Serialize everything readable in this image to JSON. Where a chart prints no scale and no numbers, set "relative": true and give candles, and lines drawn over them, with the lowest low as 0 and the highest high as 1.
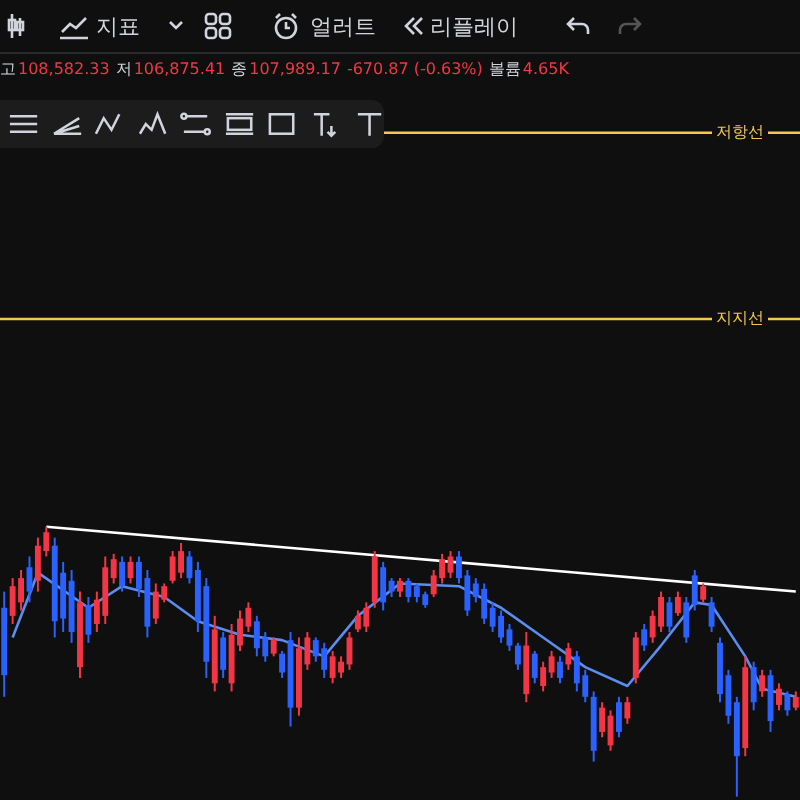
{
  "chart_data": {
    "type": "candlestick",
    "relative": true,
    "tick_labels": false,
    "colors": [
      "#2962ff",
      "#f23645",
      "#f23645",
      "#2962ff",
      "#f23645",
      "#f23645",
      "#2962ff",
      "#2962ff",
      "#2962ff",
      "#f23645",
      "#2962ff",
      "#f23645",
      "#f23645",
      "#f23645",
      "#2962ff",
      "#f23645",
      "#2962ff",
      "#2962ff",
      "#f23645",
      "#f23645",
      "#f23645",
      "#f23645",
      "#2962ff",
      "#2962ff",
      "#2962ff",
      "#f23645",
      "#2962ff",
      "#f23645",
      "#f23645",
      "#f23645",
      "#2962ff",
      "#2962ff",
      "#f23645",
      "#2962ff",
      "#2962ff",
      "#f23645",
      "#f23645",
      "#2962ff",
      "#2962ff",
      "#f23645",
      "#f23645",
      "#f23645",
      "#f23645",
      "#f23645",
      "#f23645",
      "#2962ff",
      "#2962ff",
      "#f23645",
      "#2962ff",
      "#2962ff",
      "#2962ff",
      "#f23645",
      "#f23645",
      "#f23645",
      "#2962ff",
      "#2962ff",
      "#2962ff",
      "#2962ff",
      "#2962ff",
      "#2962ff",
      "#2962ff",
      "#2962ff",
      "#f23645",
      "#2962ff",
      "#f23645",
      "#f23645",
      "#2962ff",
      "#f23645",
      "#2962ff",
      "#2962ff",
      "#2962ff",
      "#f23645",
      "#f23645",
      "#2962ff",
      "#f23645",
      "#f23645",
      "#2962ff",
      "#f23645",
      "#f23645",
      "#2962ff",
      "#f23645",
      "#2962ff",
      "#2962ff",
      "#f23645",
      "#2962ff",
      "#2962ff",
      "#2962ff",
      "#2962ff",
      "#f23645",
      "#2962ff",
      "#f23645",
      "#2962ff",
      "#f23645",
      "#2962ff",
      "#f23645"
    ],
    "categories": [
      null,
      null,
      null,
      null,
      null,
      null,
      null,
      null,
      null,
      null,
      null,
      null,
      null,
      null,
      null,
      null,
      null,
      null,
      null,
      null,
      null,
      null,
      null,
      null,
      null,
      null,
      null,
      null,
      null,
      null,
      null,
      null,
      null,
      null,
      null,
      null,
      null,
      null,
      null,
      null,
      null,
      null,
      null,
      null,
      null,
      null,
      null,
      null,
      null,
      null,
      null,
      null,
      null,
      null,
      null,
      null,
      null,
      null,
      null,
      null,
      null,
      null,
      null,
      null,
      null,
      null,
      null,
      null,
      null,
      null,
      null,
      null,
      null,
      null,
      null,
      null,
      null,
      null,
      null,
      null,
      null,
      null,
      null,
      null,
      null,
      null,
      null,
      null,
      null,
      null,
      null,
      null,
      null,
      null,
      null
    ],
    "ohlc": [
      [
        0.7,
        0.76,
        0.37,
        0.45
      ],
      [
        0.67,
        0.81,
        0.64,
        0.78
      ],
      [
        0.72,
        0.84,
        0.69,
        0.81
      ],
      [
        0.85,
        0.89,
        0.72,
        0.76
      ],
      [
        0.8,
        0.96,
        0.76,
        0.93
      ],
      [
        0.91,
        1.0,
        0.89,
        0.98
      ],
      [
        0.93,
        0.96,
        0.59,
        0.65
      ],
      [
        0.83,
        0.87,
        0.61,
        0.66
      ],
      [
        0.8,
        0.84,
        0.57,
        0.61
      ],
      [
        0.48,
        0.76,
        0.44,
        0.72
      ],
      [
        0.71,
        0.74,
        0.57,
        0.6
      ],
      [
        0.64,
        0.76,
        0.61,
        0.73
      ],
      [
        0.67,
        0.89,
        0.64,
        0.85
      ],
      [
        0.81,
        0.9,
        0.79,
        0.88
      ],
      [
        0.87,
        0.89,
        0.76,
        0.78
      ],
      [
        0.81,
        0.89,
        0.79,
        0.87
      ],
      [
        0.87,
        0.89,
        0.74,
        0.77
      ],
      [
        0.81,
        0.84,
        0.59,
        0.63
      ],
      [
        0.66,
        0.79,
        0.64,
        0.76
      ],
      [
        0.73,
        0.79,
        0.72,
        0.78
      ],
      [
        0.8,
        0.91,
        0.79,
        0.89
      ],
      [
        0.83,
        0.94,
        0.81,
        0.91
      ],
      [
        0.89,
        0.91,
        0.79,
        0.81
      ],
      [
        0.84,
        0.87,
        0.61,
        0.65
      ],
      [
        0.78,
        0.81,
        0.44,
        0.5
      ],
      [
        0.42,
        0.67,
        0.39,
        0.62
      ],
      [
        0.59,
        0.61,
        0.44,
        0.47
      ],
      [
        0.42,
        0.64,
        0.39,
        0.6
      ],
      [
        0.56,
        0.69,
        0.54,
        0.66
      ],
      [
        0.63,
        0.72,
        0.61,
        0.7
      ],
      [
        0.65,
        0.67,
        0.52,
        0.55
      ],
      [
        0.59,
        0.61,
        0.5,
        0.52
      ],
      [
        0.53,
        0.59,
        0.52,
        0.58
      ],
      [
        0.53,
        0.54,
        0.44,
        0.46
      ],
      [
        0.58,
        0.61,
        0.26,
        0.33
      ],
      [
        0.33,
        0.59,
        0.3,
        0.55
      ],
      [
        0.49,
        0.61,
        0.47,
        0.59
      ],
      [
        0.58,
        0.59,
        0.5,
        0.52
      ],
      [
        0.55,
        0.57,
        0.44,
        0.47
      ],
      [
        0.44,
        0.54,
        0.42,
        0.52
      ],
      [
        0.46,
        0.52,
        0.44,
        0.5
      ],
      [
        0.49,
        0.61,
        0.47,
        0.59
      ],
      [
        0.62,
        0.69,
        0.61,
        0.67
      ],
      [
        0.63,
        0.72,
        0.61,
        0.7
      ],
      [
        0.72,
        0.91,
        0.7,
        0.89
      ],
      [
        0.85,
        0.87,
        0.69,
        0.72
      ],
      [
        0.8,
        0.81,
        0.74,
        0.76
      ],
      [
        0.76,
        0.81,
        0.74,
        0.8
      ],
      [
        0.8,
        0.81,
        0.72,
        0.74
      ],
      [
        0.78,
        0.79,
        0.72,
        0.74
      ],
      [
        0.75,
        0.76,
        0.7,
        0.71
      ],
      [
        0.75,
        0.84,
        0.74,
        0.82
      ],
      [
        0.81,
        0.9,
        0.79,
        0.88
      ],
      [
        0.83,
        0.91,
        0.81,
        0.89
      ],
      [
        0.89,
        0.91,
        0.79,
        0.81
      ],
      [
        0.82,
        0.84,
        0.67,
        0.69
      ],
      [
        0.79,
        0.81,
        0.72,
        0.74
      ],
      [
        0.77,
        0.79,
        0.64,
        0.66
      ],
      [
        0.7,
        0.72,
        0.61,
        0.63
      ],
      [
        0.67,
        0.69,
        0.57,
        0.59
      ],
      [
        0.62,
        0.64,
        0.54,
        0.56
      ],
      [
        0.56,
        0.57,
        0.47,
        0.49
      ],
      [
        0.38,
        0.61,
        0.35,
        0.56
      ],
      [
        0.53,
        0.54,
        0.42,
        0.44
      ],
      [
        0.41,
        0.5,
        0.39,
        0.48
      ],
      [
        0.46,
        0.54,
        0.44,
        0.52
      ],
      [
        0.5,
        0.52,
        0.42,
        0.44
      ],
      [
        0.49,
        0.57,
        0.47,
        0.55
      ],
      [
        0.52,
        0.54,
        0.39,
        0.42
      ],
      [
        0.45,
        0.47,
        0.35,
        0.37
      ],
      [
        0.37,
        0.39,
        0.13,
        0.17
      ],
      [
        0.24,
        0.35,
        0.22,
        0.33
      ],
      [
        0.19,
        0.32,
        0.17,
        0.3
      ],
      [
        0.35,
        0.37,
        0.22,
        0.24
      ],
      [
        0.29,
        0.37,
        0.27,
        0.35
      ],
      [
        0.44,
        0.61,
        0.42,
        0.59
      ],
      [
        0.62,
        0.64,
        0.54,
        0.56
      ],
      [
        0.59,
        0.69,
        0.57,
        0.67
      ],
      [
        0.63,
        0.76,
        0.61,
        0.74
      ],
      [
        0.72,
        0.74,
        0.61,
        0.63
      ],
      [
        0.68,
        0.76,
        0.67,
        0.74
      ],
      [
        0.72,
        0.74,
        0.57,
        0.59
      ],
      [
        0.82,
        0.84,
        0.69,
        0.71
      ],
      [
        0.73,
        0.79,
        0.72,
        0.78
      ],
      [
        0.72,
        0.74,
        0.61,
        0.63
      ],
      [
        0.57,
        0.59,
        0.35,
        0.38
      ],
      [
        0.45,
        0.47,
        0.27,
        0.3
      ],
      [
        0.35,
        0.37,
        0.0,
        0.15
      ],
      [
        0.18,
        0.52,
        0.15,
        0.48
      ],
      [
        0.48,
        0.5,
        0.32,
        0.35
      ],
      [
        0.39,
        0.47,
        0.37,
        0.45
      ],
      [
        0.45,
        0.47,
        0.24,
        0.28
      ],
      [
        0.34,
        0.42,
        0.32,
        0.4
      ],
      [
        0.38,
        0.39,
        0.3,
        0.32
      ],
      [
        0.33,
        0.39,
        0.32,
        0.37
      ]
    ],
    "series": [
      {
        "type": "line",
        "color": "#5b8def",
        "values": [
          null,
          0.59,
          null,
          null,
          0.83,
          null,
          null,
          null,
          null,
          null,
          0.7,
          null,
          null,
          null,
          0.78,
          null,
          null,
          null,
          null,
          0.74,
          null,
          null,
          null,
          0.65,
          null,
          null,
          null,
          null,
          0.6,
          null,
          null,
          null,
          null,
          0.58,
          null,
          null,
          null,
          null,
          0.52,
          null,
          null,
          null,
          0.67,
          null,
          null,
          null,
          null,
          0.79,
          null,
          null,
          null,
          null,
          null,
          null,
          0.78,
          null,
          null,
          null,
          null,
          0.7,
          null,
          null,
          null,
          null,
          0.59,
          null,
          null,
          null,
          null,
          0.48,
          null,
          null,
          null,
          null,
          0.41,
          null,
          null,
          null,
          0.56,
          null,
          null,
          null,
          0.72,
          null,
          0.71,
          null,
          null,
          null,
          0.52,
          null,
          0.4,
          null,
          null,
          null,
          0.37
        ]
      },
      {
        "type": "line",
        "color": "#ffffff",
        "values": [
          null,
          null,
          null,
          null,
          null,
          1.0,
          null,
          null,
          null,
          null,
          null,
          null,
          null,
          null,
          null,
          null,
          null,
          null,
          null,
          null,
          null,
          null,
          null,
          null,
          null,
          null,
          null,
          null,
          null,
          null,
          null,
          null,
          null,
          null,
          null,
          null,
          null,
          null,
          null,
          null,
          null,
          null,
          null,
          null,
          null,
          null,
          null,
          null,
          null,
          null,
          null,
          null,
          null,
          null,
          null,
          null,
          null,
          null,
          null,
          null,
          null,
          null,
          null,
          null,
          null,
          null,
          null,
          null,
          null,
          null,
          null,
          null,
          null,
          null,
          null,
          null,
          null,
          null,
          null,
          null,
          null,
          null,
          null,
          null,
          null,
          null,
          null,
          null,
          null,
          null,
          null,
          null,
          null,
          null,
          0.76
        ]
      }
    ],
    "ref_lines": [
      {
        "axis": "y",
        "value": 2.46,
        "label": "저항선",
        "color": "#f2c94c"
      },
      {
        "axis": "y",
        "value": 1.77,
        "label": "지지선",
        "color": "#f2c94c"
      }
    ],
    "annotations": [
      "지표",
      "얼러트",
      "리플레이",
      "고",
      "108,582.33",
      "저",
      "106,875.41",
      "종",
      "107,989.17",
      "-670.87 (-0.63%)",
      "볼륨",
      "4.65K"
    ]
  }
}
